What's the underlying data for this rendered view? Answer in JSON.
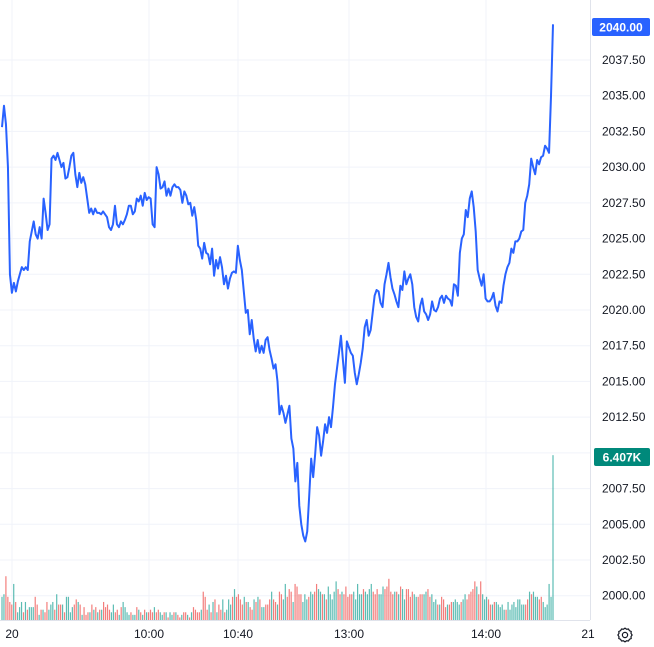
{
  "chart_data": {
    "type": "line",
    "title": "",
    "xlabel": "",
    "ylabel": "",
    "ylim": [
      1998.3,
      2041.7
    ],
    "y_ticks": [
      "2000.00",
      "2002.50",
      "2005.00",
      "2007.50",
      "2010.00",
      "2012.50",
      "2015.00",
      "2017.50",
      "2020.00",
      "2022.50",
      "2025.00",
      "2027.50",
      "2030.00",
      "2032.50",
      "2035.00",
      "2037.50"
    ],
    "x_ticks": [
      "20",
      "10:00",
      "10:40",
      "13:00",
      "14:00",
      "21"
    ],
    "grid": true,
    "line_color": "#2962ff",
    "volume_up_color": "#26a69a",
    "volume_down_color": "#ef5350",
    "last_price_label": "2040.00",
    "last_price_value": 2040.0,
    "last_price_color": "#2962ff",
    "volume_label": "6.407K",
    "volume_label_color": "#00897b",
    "price_series": [
      2032.8,
      2034.3,
      2033.0,
      2030.0,
      2022.5,
      2021.2,
      2021.9,
      2021.3,
      2022.0,
      2022.5,
      2023.0,
      2022.8,
      2023.0,
      2022.8,
      2024.8,
      2025.5,
      2026.2,
      2025.3,
      2025.0,
      2025.8,
      2025.0,
      2027.8,
      2026.8,
      2025.6,
      2026.0,
      2030.6,
      2030.8,
      2030.5,
      2031.0,
      2030.5,
      2030.0,
      2030.3,
      2029.2,
      2029.3,
      2030.0,
      2030.8,
      2031.0,
      2029.5,
      2028.6,
      2029.6,
      2028.9,
      2029.3,
      2028.8,
      2027.8,
      2026.8,
      2027.1,
      2026.7,
      2027.1,
      2026.8,
      2026.8,
      2026.7,
      2026.9,
      2026.7,
      2026.5,
      2025.8,
      2025.6,
      2026.0,
      2027.3,
      2026.0,
      2025.8,
      2026.2,
      2026.0,
      2026.3,
      2026.7,
      2027.3,
      2027.3,
      2026.7,
      2026.9,
      2027.8,
      2027.6,
      2028.0,
      2027.3,
      2028.2,
      2027.7,
      2027.9,
      2027.8,
      2026.0,
      2025.8,
      2030.0,
      2029.5,
      2028.5,
      2028.6,
      2029.0,
      2028.0,
      2028.5,
      2028.0,
      2028.6,
      2028.8,
      2028.6,
      2028.6,
      2028.4,
      2027.5,
      2028.3,
      2028.0,
      2027.4,
      2027.5,
      2026.6,
      2027.2,
      2026.3,
      2024.5,
      2024.3,
      2023.6,
      2024.7,
      2024.0,
      2023.9,
      2023.2,
      2024.3,
      2022.4,
      2023.5,
      2022.9,
      2023.7,
      2023.0,
      2021.8,
      2022.4,
      2021.5,
      2022.2,
      2022.6,
      2022.7,
      2022.6,
      2024.5,
      2023.5,
      2022.8,
      2021.3,
      2019.8,
      2020.0,
      2018.3,
      2019.3,
      2018.0,
      2017.1,
      2017.9,
      2017.0,
      2017.5,
      2017.0,
      2017.9,
      2018.1,
      2017.2,
      2016.6,
      2015.9,
      2016.2,
      2015.0,
      2012.7,
      2013.3,
      2012.8,
      2012.1,
      2012.7,
      2013.3,
      2011.0,
      2010.3,
      2008.0,
      2009.3,
      2006.3,
      2005.0,
      2004.2,
      2003.8,
      2004.5,
      2007.0,
      2009.6,
      2008.3,
      2009.9,
      2011.8,
      2011.2,
      2009.8,
      2010.8,
      2012.0,
      2011.4,
      2012.5,
      2011.8,
      2013.2,
      2014.8,
      2015.9,
      2017.0,
      2018.2,
      2016.5,
      2014.9,
      2017.8,
      2017.4,
      2017.0,
      2016.8,
      2015.6,
      2014.8,
      2015.5,
      2016.3,
      2017.3,
      2018.8,
      2019.3,
      2018.2,
      2018.6,
      2019.8,
      2021.0,
      2021.4,
      2021.3,
      2020.5,
      2020.2,
      2021.8,
      2022.5,
      2023.3,
      2022.3,
      2021.5,
      2021.1,
      2020.6,
      2020.2,
      2021.7,
      2021.4,
      2022.7,
      2021.8,
      2022.2,
      2022.5,
      2021.8,
      2020.2,
      2019.5,
      2019.2,
      2020.3,
      2020.8,
      2019.9,
      2019.7,
      2019.3,
      2019.7,
      2020.6,
      2020.0,
      2019.9,
      2020.2,
      2020.8,
      2021.0,
      2020.5,
      2021.0,
      2020.8,
      2020.7,
      2020.3,
      2021.8,
      2021.7,
      2021.0,
      2024.0,
      2025.0,
      2025.3,
      2027.0,
      2026.5,
      2027.8,
      2028.3,
      2027.2,
      2025.5,
      2022.8,
      2022.2,
      2021.7,
      2022.5,
      2020.8,
      2020.6,
      2020.6,
      2020.8,
      2021.2,
      2020.3,
      2019.9,
      2020.6,
      2020.5,
      2021.7,
      2022.5,
      2023.0,
      2023.3,
      2024.3,
      2024.0,
      2024.8,
      2024.8,
      2025.0,
      2025.5,
      2025.6,
      2027.5,
      2028.0,
      2028.8,
      2030.6,
      2030.0,
      2029.5,
      2030.5,
      2030.2,
      2030.7,
      2030.8,
      2031.5,
      2031.3,
      2031.0,
      2035.0,
      2040.0
    ],
    "volume_series": [
      0.9,
      1.0,
      1.7,
      0.9,
      0.7,
      0.6,
      1.4,
      0.7,
      0.3,
      0.5,
      0.7,
      0.3,
      0.7,
      0.4,
      0.5,
      0.5,
      0.5,
      0.9,
      0.6,
      0.2,
      0.4,
      0.4,
      0.3,
      0.7,
      0.4,
      0.6,
      0.7,
      0.4,
      1.0,
      0.6,
      0.6,
      0.6,
      0.3,
      0.9,
      0.9,
      0.3,
      0.5,
      0.6,
      0.8,
      0.7,
      0.6,
      0.2,
      0.5,
      0.2,
      0.3,
      0.3,
      0.6,
      0.4,
      0.5,
      0.3,
      0.4,
      0.4,
      0.7,
      0.5,
      0.6,
      0.4,
      0.3,
      0.6,
      0.3,
      0.4,
      0.2,
      0.5,
      0.7,
      0.5,
      0.3,
      0.2,
      0.3,
      0.2,
      0.2,
      0.5,
      0.4,
      0.3,
      0.2,
      0.4,
      0.3,
      0.3,
      0.4,
      0.3,
      0.5,
      0.3,
      0.4,
      0.3,
      0.2,
      0.3,
      0.3,
      0.1,
      0.3,
      0.2,
      0.3,
      0.3,
      0.2,
      0.1,
      0.2,
      0.3,
      0.3,
      0.2,
      0.1,
      0.3,
      0.5,
      0.4,
      0.3,
      0.3,
      0.4,
      1.1,
      0.9,
      0.4,
      0.6,
      0.3,
      0.7,
      0.8,
      0.3,
      0.6,
      0.4,
      0.8,
      0.3,
      0.4,
      0.8,
      0.6,
      0.9,
      1.2,
      0.9,
      1.0,
      0.8,
      0.6,
      0.9,
      0.7,
      0.7,
      0.5,
      0.4,
      0.8,
      0.7,
      0.9,
      0.8,
      0.5,
      0.5,
      0.6,
      0.6,
      0.8,
      1.1,
      0.8,
      0.7,
      0.6,
      1.1,
      1.0,
      0.8,
      1.4,
      0.9,
      1.2,
      1.1,
      0.7,
      1.4,
      1.3,
      1.0,
      1.0,
      0.7,
      1.0,
      0.8,
      0.9,
      1.1,
      1.0,
      1.1,
      1.4,
      1.2,
      1.1,
      1.0,
      1.0,
      0.8,
      1.3,
      1.0,
      0.8,
      1.1,
      1.5,
      1.2,
      1.0,
      1.1,
      1.0,
      1.3,
      0.9,
      1.0,
      1.0,
      1.1,
      0.8,
      1.4,
      1.0,
      1.0,
      1.2,
      1.1,
      1.0,
      1.2,
      1.4,
      1.1,
      1.0,
      1.2,
      1.0,
      1.0,
      1.3,
      1.2,
      1.3,
      1.6,
      1.1,
      1.0,
      1.1,
      1.1,
      1.0,
      1.3,
      1.2,
      0.8,
      1.2,
      1.2,
      0.9,
      1.1,
      1.0,
      0.9,
      0.9,
      1.0,
      1.0,
      1.0,
      1.1,
      1.2,
      0.9,
      1.0,
      0.7,
      0.8,
      0.6,
      0.6,
      0.9,
      0.8,
      0.5,
      0.6,
      0.6,
      0.7,
      0.7,
      0.8,
      0.7,
      0.6,
      0.7,
      0.8,
      1.0,
      0.8,
      1.0,
      1.1,
      1.2,
      1.5,
      1.3,
      1.0,
      1.5,
      1.0,
      0.8,
      0.9,
      0.8,
      0.6,
      0.6,
      0.7,
      0.7,
      0.6,
      0.5,
      0.6,
      0.4,
      0.4,
      0.7,
      0.4,
      0.6,
      0.7,
      0.5,
      0.8,
      0.8,
      0.6,
      0.6,
      0.6,
      0.8,
      1.1,
      1.0,
      1.1,
      0.9,
      0.9,
      0.8,
      0.9,
      0.7,
      0.5,
      0.6,
      1.4,
      0.9,
      6.4
    ]
  },
  "icons": {
    "settings": "settings-icon"
  }
}
